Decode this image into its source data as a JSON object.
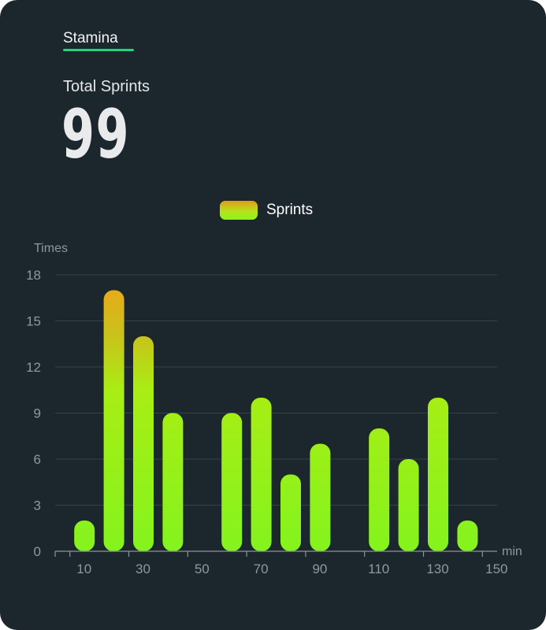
{
  "header": {
    "tab_label": "Stamina",
    "total_label": "Total Sprints",
    "total_value": "99"
  },
  "colors": {
    "background": "#1c262d",
    "accent_underline": "#22d47a",
    "bar_top": "#f0a21a",
    "bar_bottom": "#86f51b"
  },
  "chart_data": {
    "type": "bar",
    "title": "",
    "legend": [
      "Sprints"
    ],
    "legend_position": "top-center",
    "ylabel": "Times",
    "xlabel": "min",
    "ylim": [
      0,
      18
    ],
    "yticks": [
      0,
      3,
      6,
      9,
      12,
      15,
      18
    ],
    "xlim": [
      5,
      155
    ],
    "xticks": [
      10,
      30,
      50,
      70,
      90,
      110,
      130,
      150
    ],
    "grid": true,
    "series": [
      {
        "name": "Sprints",
        "x": [
          10,
          20,
          30,
          40,
          50,
          60,
          70,
          80,
          90,
          100,
          110,
          120,
          130,
          140
        ],
        "values": [
          2,
          17,
          14,
          9,
          0,
          9,
          10,
          5,
          7,
          0,
          8,
          6,
          10,
          2
        ]
      }
    ]
  }
}
